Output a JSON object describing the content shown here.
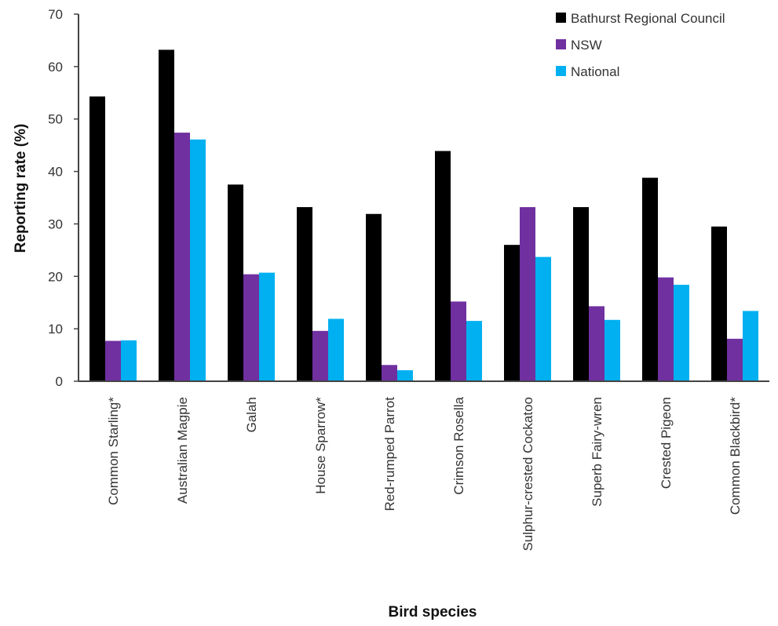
{
  "chart_data": {
    "type": "bar",
    "title": "",
    "xlabel": "Bird species",
    "ylabel": "Reporting rate (%)",
    "ylim": [
      0,
      70
    ],
    "yticks": [
      0,
      10,
      20,
      30,
      40,
      50,
      60,
      70
    ],
    "grid": false,
    "legend_position": "top-right",
    "categories": [
      "Common Starling*",
      "Australian Magpie",
      "Galah",
      "House Sparrow*",
      "Red-rumped Parrot",
      "Crimson Rosella",
      "Sulphur-crested Cockatoo",
      "Superb Fairy-wren",
      "Crested Pigeon",
      "Common Blackbird*"
    ],
    "series": [
      {
        "name": "Bathurst Regional Council",
        "color": "#000000",
        "values": [
          54.3,
          63.2,
          37.5,
          33.2,
          31.9,
          43.9,
          26.0,
          33.2,
          38.8,
          29.5
        ]
      },
      {
        "name": "NSW",
        "color": "#7030a0",
        "values": [
          7.7,
          47.4,
          20.4,
          9.6,
          3.1,
          15.2,
          33.2,
          14.3,
          19.8,
          8.1
        ]
      },
      {
        "name": "National",
        "color": "#00b0f0",
        "values": [
          7.8,
          46.1,
          20.7,
          11.9,
          2.1,
          11.5,
          23.7,
          11.7,
          18.4,
          13.4
        ]
      }
    ]
  }
}
